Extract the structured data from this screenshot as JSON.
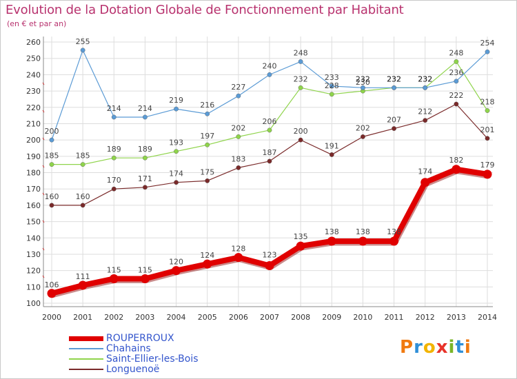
{
  "title": "Evolution de la Dotation Globale de Fonctionnement par Habitant",
  "subtitle": "(en € et par an)",
  "logo": {
    "text": "Proxiti",
    "colors": [
      "#f07a10",
      "#2f8fd8",
      "#f2b400",
      "#e8332a",
      "#7ab528",
      "#2f8fd8",
      "#f07a10"
    ]
  },
  "colors": {
    "title": "#b8326e",
    "grid": "#dddddd",
    "axis": "#888888",
    "axis_break": "#cc3333"
  },
  "chart_data": {
    "type": "line",
    "title": "Evolution de la Dotation Globale de Fonctionnement par Habitant",
    "ylabel": "(en € et par an)",
    "xlabel": "",
    "categories": [
      "2000",
      "2001",
      "2002",
      "2003",
      "2004",
      "2005",
      "2006",
      "2007",
      "2008",
      "2009",
      "2010",
      "2011",
      "2012",
      "2013",
      "2014"
    ],
    "ylim": [
      100,
      260
    ],
    "yticks": [
      100,
      110,
      120,
      130,
      140,
      150,
      160,
      170,
      180,
      190,
      200,
      210,
      220,
      230,
      240,
      250,
      260
    ],
    "grid": true,
    "legend_position": "bottom-left",
    "series": [
      {
        "name": "ROUPERROUX",
        "color": "#e00000",
        "emphasis": true,
        "values": [
          106,
          111,
          115,
          115,
          120,
          124,
          128,
          123,
          135,
          138,
          138,
          138,
          174,
          182,
          179
        ]
      },
      {
        "name": "Chahains",
        "color": "#5b9bd5",
        "values": [
          200,
          255,
          214,
          214,
          219,
          216,
          227,
          240,
          248,
          233,
          232,
          232,
          232,
          236,
          254
        ]
      },
      {
        "name": "Saint-Ellier-les-Bois",
        "color": "#8fd44b",
        "values": [
          185,
          185,
          189,
          189,
          193,
          197,
          202,
          206,
          232,
          228,
          230,
          232,
          232,
          248,
          218
        ]
      },
      {
        "name": "Longuenoë",
        "color": "#7a2a2a",
        "values": [
          160,
          160,
          170,
          171,
          174,
          175,
          183,
          187,
          200,
          191,
          202,
          207,
          212,
          222,
          201
        ]
      }
    ]
  }
}
